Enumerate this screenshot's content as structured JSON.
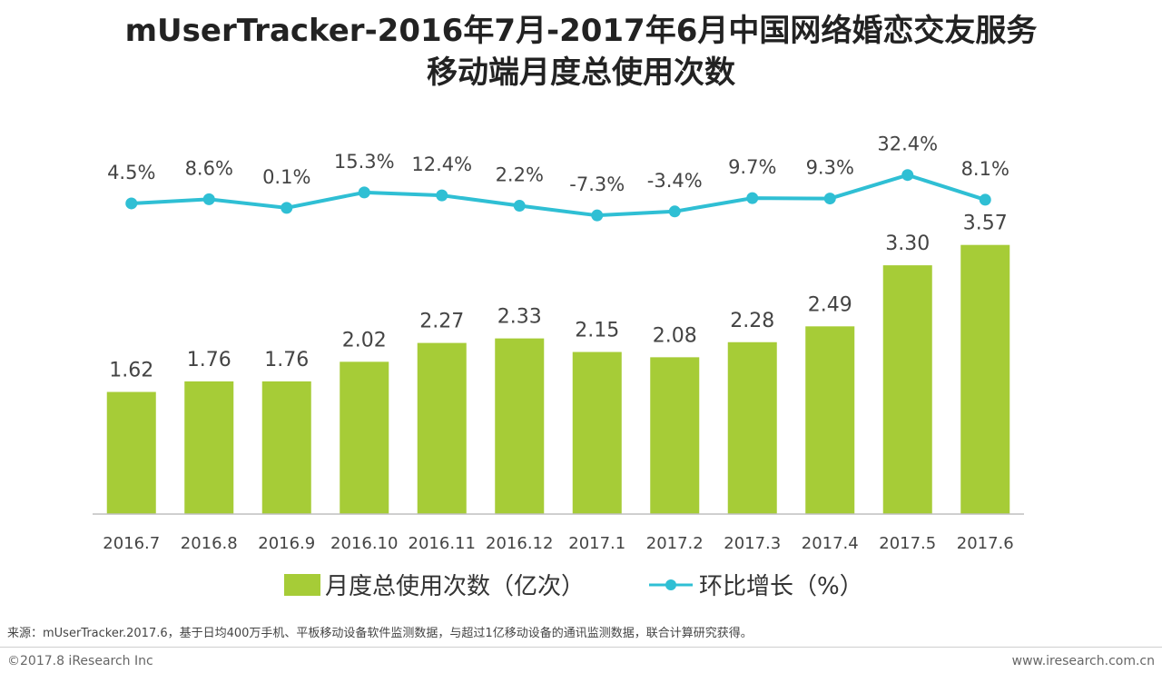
{
  "title_line1": "mUserTracker-2016年7月-2017年6月中国网络婚恋交友服务",
  "title_line2": "移动端月度总使用次数",
  "chart_data": {
    "type": "bar",
    "categories": [
      "2016.7",
      "2016.8",
      "2016.9",
      "2016.10",
      "2016.11",
      "2016.12",
      "2017.1",
      "2017.2",
      "2017.3",
      "2017.4",
      "2017.5",
      "2017.6"
    ],
    "series": [
      {
        "name": "月度总使用次数（亿次）",
        "type": "bar",
        "values": [
          1.62,
          1.76,
          1.76,
          2.02,
          2.27,
          2.33,
          2.15,
          2.08,
          2.28,
          2.49,
          3.3,
          3.57
        ],
        "labels": [
          "1.62",
          "1.76",
          "1.76",
          "2.02",
          "2.27",
          "2.33",
          "2.15",
          "2.08",
          "2.28",
          "2.49",
          "3.30",
          "3.57"
        ]
      },
      {
        "name": "环比增长（%）",
        "type": "line",
        "values": [
          4.5,
          8.6,
          0.1,
          15.3,
          12.4,
          2.2,
          -7.3,
          -3.4,
          9.7,
          9.3,
          32.4,
          8.1
        ],
        "labels": [
          "4.5%",
          "8.6%",
          "0.1%",
          "15.3%",
          "12.4%",
          "2.2%",
          "-7.3%",
          "-3.4%",
          "9.7%",
          "9.3%",
          "32.4%",
          "8.1%"
        ]
      }
    ],
    "ylim": [
      0,
      4
    ],
    "y2lim": [
      -20,
      60
    ],
    "colors": {
      "bar": "#a6cc37",
      "line": "#2fbfd4",
      "axis": "#bfbfbf"
    },
    "legend_position": "bottom"
  },
  "source": "来源：mUserTracker.2017.6，基于日均400万手机、平板移动设备软件监测数据，与超过1亿移动设备的通讯监测数据，联合计算研究获得。",
  "copyright": "©2017.8 iResearch Inc",
  "website": "www.iresearch.com.cn"
}
